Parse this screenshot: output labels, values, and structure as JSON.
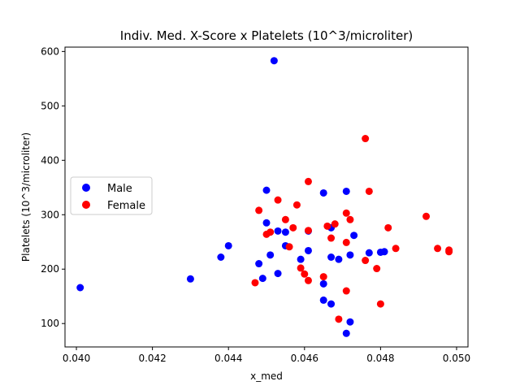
{
  "chart_data": {
    "type": "scatter",
    "title": "Indiv. Med. X-Score x Platelets (10^3/microliter)",
    "xlabel": "x_med",
    "ylabel": "Platelets (10^3/microliter)",
    "xlim": [
      0.0397,
      0.0503
    ],
    "ylim": [
      57,
      608
    ],
    "xticks": [
      0.04,
      0.042,
      0.044,
      0.046,
      0.048,
      0.05
    ],
    "xtick_labels": [
      "0.040",
      "0.042",
      "0.044",
      "0.046",
      "0.048",
      "0.050"
    ],
    "yticks": [
      100,
      200,
      300,
      400,
      500,
      600
    ],
    "ytick_labels": [
      "100",
      "200",
      "300",
      "400",
      "500",
      "600"
    ],
    "legend": "center-left",
    "series": [
      {
        "name": "Male",
        "color": "#0000ff",
        "points": [
          {
            "x": 0.0401,
            "y": 166
          },
          {
            "x": 0.043,
            "y": 182
          },
          {
            "x": 0.0438,
            "y": 222
          },
          {
            "x": 0.044,
            "y": 243
          },
          {
            "x": 0.0448,
            "y": 210
          },
          {
            "x": 0.0449,
            "y": 183
          },
          {
            "x": 0.045,
            "y": 285
          },
          {
            "x": 0.045,
            "y": 345
          },
          {
            "x": 0.0451,
            "y": 226
          },
          {
            "x": 0.0452,
            "y": 583
          },
          {
            "x": 0.0453,
            "y": 192
          },
          {
            "x": 0.0453,
            "y": 270
          },
          {
            "x": 0.0455,
            "y": 243
          },
          {
            "x": 0.0455,
            "y": 268
          },
          {
            "x": 0.0459,
            "y": 218
          },
          {
            "x": 0.0461,
            "y": 234
          },
          {
            "x": 0.0461,
            "y": 270
          },
          {
            "x": 0.0465,
            "y": 173
          },
          {
            "x": 0.0465,
            "y": 143
          },
          {
            "x": 0.0465,
            "y": 340
          },
          {
            "x": 0.0467,
            "y": 222
          },
          {
            "x": 0.0467,
            "y": 276
          },
          {
            "x": 0.0467,
            "y": 136
          },
          {
            "x": 0.0469,
            "y": 218
          },
          {
            "x": 0.0471,
            "y": 343
          },
          {
            "x": 0.0471,
            "y": 82
          },
          {
            "x": 0.0472,
            "y": 226
          },
          {
            "x": 0.0472,
            "y": 103
          },
          {
            "x": 0.0473,
            "y": 262
          },
          {
            "x": 0.0477,
            "y": 230
          },
          {
            "x": 0.048,
            "y": 231
          },
          {
            "x": 0.0481,
            "y": 232
          }
        ]
      },
      {
        "name": "Female",
        "color": "#ff0000",
        "points": [
          {
            "x": 0.0447,
            "y": 175
          },
          {
            "x": 0.0448,
            "y": 308
          },
          {
            "x": 0.045,
            "y": 264
          },
          {
            "x": 0.0451,
            "y": 268
          },
          {
            "x": 0.0453,
            "y": 327
          },
          {
            "x": 0.0455,
            "y": 291
          },
          {
            "x": 0.0456,
            "y": 241
          },
          {
            "x": 0.0457,
            "y": 276
          },
          {
            "x": 0.0458,
            "y": 318
          },
          {
            "x": 0.0459,
            "y": 202
          },
          {
            "x": 0.046,
            "y": 191
          },
          {
            "x": 0.0461,
            "y": 361
          },
          {
            "x": 0.0461,
            "y": 271
          },
          {
            "x": 0.0461,
            "y": 179
          },
          {
            "x": 0.0465,
            "y": 186
          },
          {
            "x": 0.0466,
            "y": 279
          },
          {
            "x": 0.0467,
            "y": 257
          },
          {
            "x": 0.0468,
            "y": 283
          },
          {
            "x": 0.0469,
            "y": 108
          },
          {
            "x": 0.0471,
            "y": 303
          },
          {
            "x": 0.0471,
            "y": 249
          },
          {
            "x": 0.0471,
            "y": 160
          },
          {
            "x": 0.0472,
            "y": 291
          },
          {
            "x": 0.0476,
            "y": 216
          },
          {
            "x": 0.0476,
            "y": 440
          },
          {
            "x": 0.0477,
            "y": 343
          },
          {
            "x": 0.0479,
            "y": 201
          },
          {
            "x": 0.048,
            "y": 136
          },
          {
            "x": 0.0482,
            "y": 276
          },
          {
            "x": 0.0484,
            "y": 238
          },
          {
            "x": 0.0492,
            "y": 297
          },
          {
            "x": 0.0495,
            "y": 238
          },
          {
            "x": 0.0498,
            "y": 235
          },
          {
            "x": 0.0498,
            "y": 232
          }
        ]
      }
    ]
  }
}
